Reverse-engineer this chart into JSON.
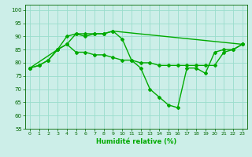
{
  "title": "",
  "xlabel": "Humidité relative (%)",
  "ylabel": "",
  "bg_color": "#cceee8",
  "grid_color": "#99ddcc",
  "line_color": "#00aa00",
  "marker": "D",
  "markersize": 2,
  "linewidth": 1.0,
  "xlim": [
    -0.5,
    23.5
  ],
  "ylim": [
    55,
    102
  ],
  "yticks": [
    55,
    60,
    65,
    70,
    75,
    80,
    85,
    90,
    95,
    100
  ],
  "xticks": [
    0,
    1,
    2,
    3,
    4,
    5,
    6,
    7,
    8,
    9,
    10,
    11,
    12,
    13,
    14,
    15,
    16,
    17,
    18,
    19,
    20,
    21,
    22,
    23
  ],
  "series": [
    [
      78,
      79,
      81,
      85,
      87,
      84,
      84,
      83,
      83,
      82,
      81,
      81,
      80,
      80,
      79,
      79,
      79,
      79,
      79,
      79,
      79,
      84,
      85,
      87
    ],
    [
      78,
      79,
      81,
      85,
      90,
      91,
      91,
      91,
      91,
      92,
      89,
      81,
      78,
      70,
      67,
      64,
      63,
      78,
      78,
      76,
      84,
      85,
      85,
      87
    ],
    [
      78,
      null,
      null,
      85,
      87,
      91,
      90,
      91,
      91,
      92,
      null,
      null,
      null,
      null,
      null,
      null,
      null,
      null,
      null,
      null,
      null,
      null,
      null,
      87
    ]
  ]
}
